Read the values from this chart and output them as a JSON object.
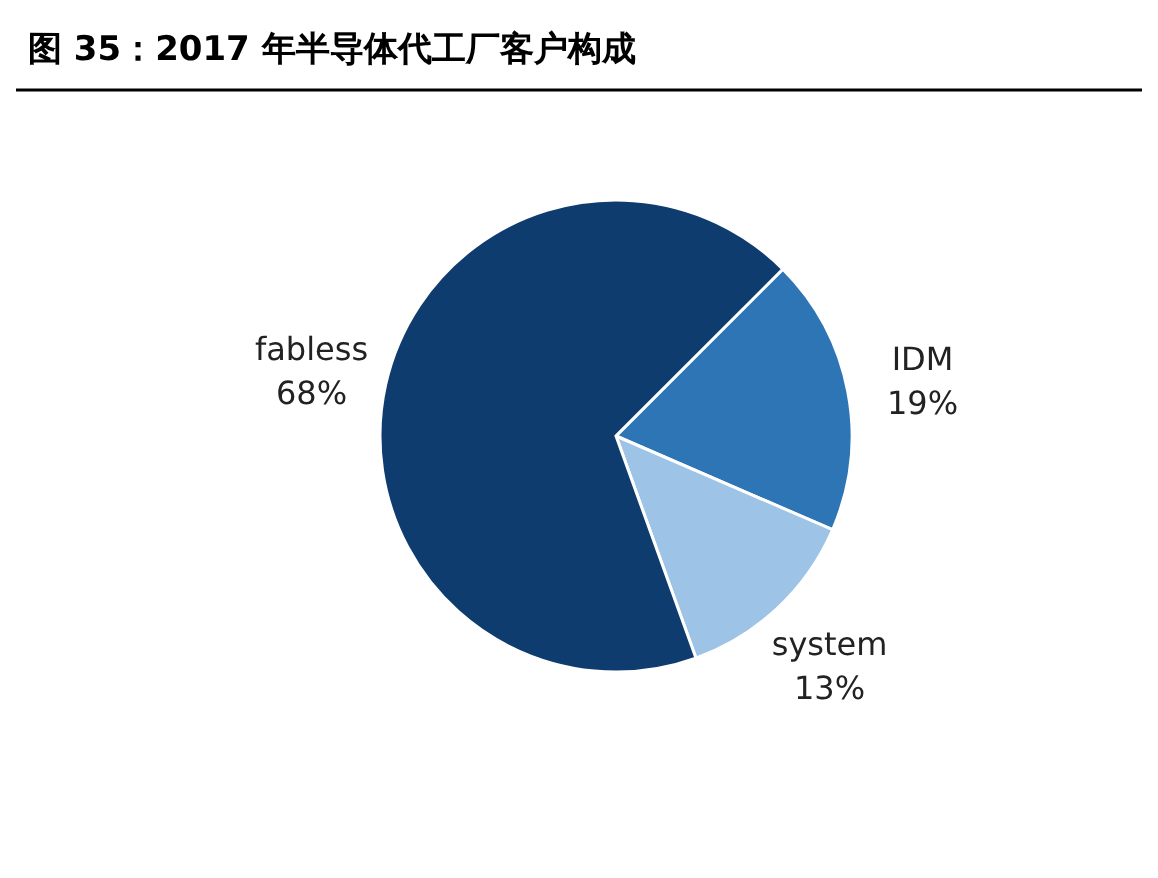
{
  "chart_data": {
    "type": "pie",
    "title": "图 35：2017 年半导体代工厂客户构成",
    "categories": [
      "IDM",
      "system",
      "fabless"
    ],
    "values": [
      19,
      13,
      68
    ],
    "value_labels": [
      "19%",
      "13%",
      "68%"
    ],
    "colors": [
      "#2e75b6",
      "#9dc3e6",
      "#0f3c6e"
    ]
  }
}
